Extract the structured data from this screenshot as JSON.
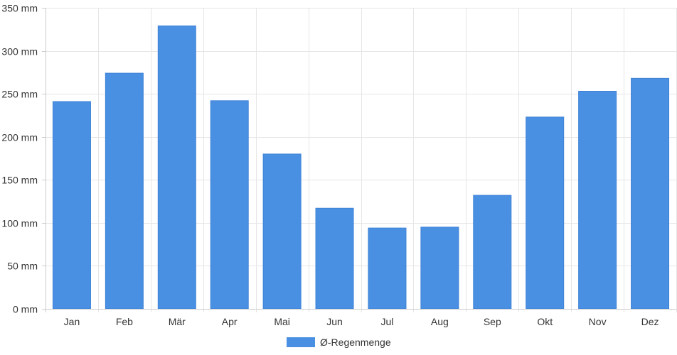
{
  "chart_data": {
    "type": "bar",
    "categories": [
      "Jan",
      "Feb",
      "Mär",
      "Apr",
      "Mai",
      "Jun",
      "Jul",
      "Aug",
      "Sep",
      "Okt",
      "Nov",
      "Dez"
    ],
    "series": [
      {
        "name": "Ø-Regenmenge",
        "values": [
          241,
          274,
          329,
          242,
          180,
          117,
          94,
          95,
          132,
          223,
          253,
          268
        ],
        "color": "#4a90e2"
      }
    ],
    "title": "",
    "xlabel": "",
    "ylabel": "",
    "ylim": [
      0,
      350
    ],
    "yticks": [
      "0 mm",
      "50 mm",
      "100 mm",
      "150 mm",
      "200 mm",
      "250 mm",
      "300 mm",
      "350 mm"
    ],
    "ytick_values": [
      0,
      50,
      100,
      150,
      200,
      250,
      300,
      350
    ],
    "grid": true,
    "legend_position": "bottom-center"
  }
}
